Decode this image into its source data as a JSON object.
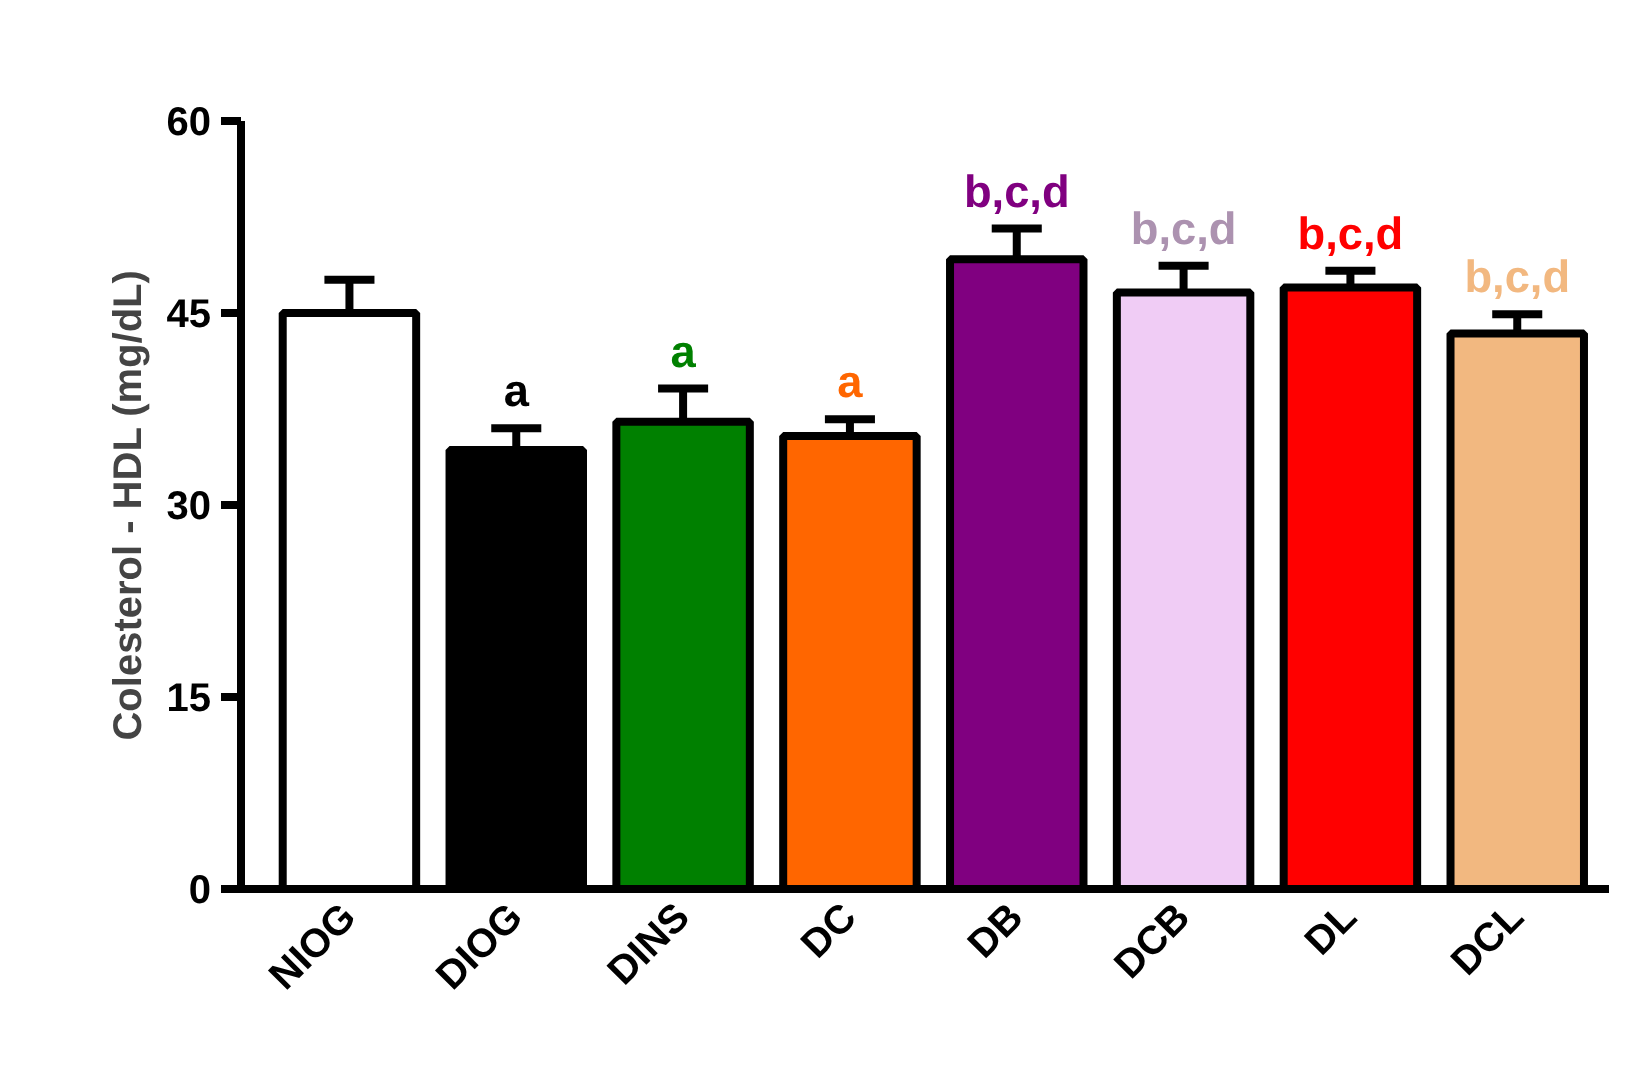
{
  "chart_data": {
    "type": "bar",
    "ylabel": "Colesterol - HDL (mg/dL)",
    "categories": [
      "NIOG",
      "DIOG",
      "DINS",
      "DC",
      "DB",
      "DCB",
      "DL",
      "DCL"
    ],
    "values": [
      45.0,
      34.3,
      36.5,
      35.4,
      49.2,
      46.6,
      47.0,
      43.4
    ],
    "colors": [
      "#ffffff",
      "#000000",
      "#008000",
      "#ff6600",
      "#800080",
      "#f0ccf5",
      "#ff0000",
      "#f2b880"
    ],
    "errors": [
      [
        45.0,
        47.6
      ],
      [
        34.3,
        36.0
      ],
      [
        36.5,
        39.1
      ],
      [
        35.4,
        36.7
      ],
      [
        49.2,
        51.6
      ],
      [
        46.6,
        48.7
      ],
      [
        47.0,
        48.3
      ],
      [
        43.4,
        44.9
      ]
    ],
    "value_labels": [
      null,
      "a",
      "a",
      "a",
      "b,c,d",
      "b,c,d",
      "b,c,d",
      "b,c,d"
    ],
    "ylim": [
      0,
      60
    ],
    "yticks": [
      0,
      15,
      30,
      45,
      60
    ],
    "grid": false
  }
}
